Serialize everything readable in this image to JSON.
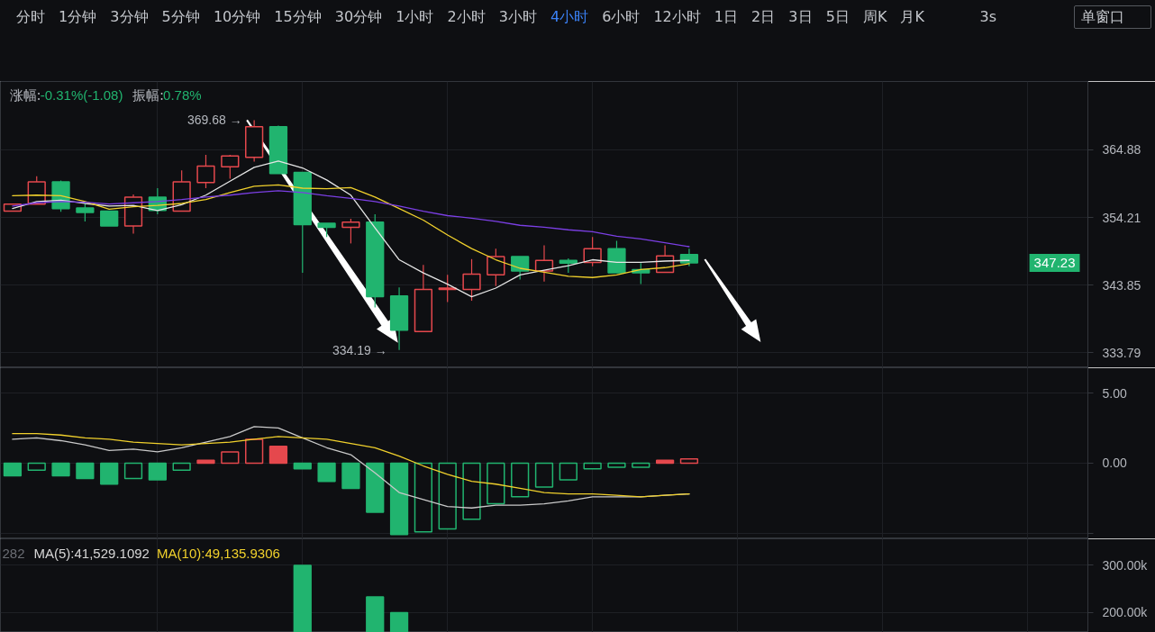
{
  "chart_data": [
    {
      "type": "other",
      "annotations": [
        "分时 1分钟 3分钟 5分钟 10分钟 15分钟 30分钟 1小时 2小时 3小时",
        "4小时",
        "6小时 12小时 1日 2日 3日 5日 周K 月K",
        "3s",
        "单窗口"
      ],
      "colors": [
        "#c4c7cc",
        "#3b82f6",
        "#c4c7cc",
        "#c4c7cc",
        "#c4c7cc"
      ]
    },
    {
      "type": "candlestick",
      "categories": [
        null,
        null,
        null,
        null,
        null,
        null,
        null,
        null,
        null,
        null,
        null,
        null,
        null,
        null,
        null,
        null,
        null,
        null,
        null,
        null,
        null,
        null,
        null,
        null,
        null,
        null,
        null,
        null,
        null,
        null,
        null,
        null,
        null,
        null,
        null,
        null,
        null,
        null,
        null,
        null,
        null,
        null,
        null,
        null,
        null
      ],
      "ohlc": [
        [
          355.2,
          356.3,
          355.2,
          356.3
        ],
        [
          356.3,
          360.7,
          356.3,
          359.8
        ],
        [
          359.8,
          360.0,
          355.1,
          355.6
        ],
        [
          355.7,
          356.4,
          353.6,
          355.0
        ],
        [
          355.2,
          355.2,
          352.9,
          352.9
        ],
        [
          352.9,
          357.8,
          351.7,
          357.4
        ],
        [
          357.4,
          358.8,
          354.7,
          355.3
        ],
        [
          355.2,
          361.6,
          355.2,
          359.8
        ],
        [
          359.7,
          364.1,
          358.8,
          362.3
        ],
        [
          362.2,
          364.1,
          360.3,
          363.9
        ],
        [
          363.7,
          369.68,
          363.0,
          368.6
        ],
        [
          368.6,
          368.8,
          361.1,
          361.1
        ],
        [
          361.3,
          361.3,
          345.7,
          353.1
        ],
        [
          353.3,
          353.3,
          351.2,
          352.7
        ],
        [
          352.7,
          354.0,
          350.2,
          353.5
        ],
        [
          353.5,
          354.7,
          340.5,
          342.1
        ],
        [
          342.2,
          343.5,
          334.19,
          337.1
        ],
        [
          336.9,
          346.9,
          336.8,
          343.2
        ],
        [
          343.2,
          345.4,
          341.3,
          343.4
        ],
        [
          343.2,
          347.8,
          341.5,
          345.5
        ],
        [
          345.4,
          349.4,
          343.7,
          348.2
        ],
        [
          348.2,
          348.2,
          344.7,
          346.0
        ],
        [
          346.0,
          349.9,
          344.4,
          347.6
        ],
        [
          347.6,
          347.9,
          345.7,
          347.2
        ],
        [
          347.3,
          351.2,
          346.7,
          349.4
        ],
        [
          349.4,
          350.6,
          345.7,
          345.7
        ],
        [
          346.2,
          347.2,
          344.0,
          345.7
        ],
        [
          345.8,
          349.9,
          345.8,
          348.3
        ],
        [
          348.5,
          349.4,
          346.7,
          347.23
        ],
        null,
        null,
        null,
        null,
        null,
        null,
        null,
        null,
        null,
        null,
        null,
        null,
        null,
        null,
        null,
        null
      ],
      "colors": [
        "#e5484d",
        "#e5484d",
        "#21b46f",
        "#21b46f",
        "#21b46f",
        "#e5484d",
        "#21b46f",
        "#e5484d",
        "#e5484d",
        "#e5484d",
        "#e5484d",
        "#21b46f",
        "#21b46f",
        "#21b46f",
        "#e5484d",
        "#21b46f",
        "#21b46f",
        "#e5484d",
        "#e5484d",
        "#e5484d",
        "#e5484d",
        "#21b46f",
        "#e5484d",
        "#21b46f",
        "#e5484d",
        "#21b46f",
        "#21b46f",
        "#e5484d",
        "#21b46f",
        null,
        null,
        null,
        null,
        null,
        null,
        null,
        null,
        null,
        null,
        null,
        null,
        null,
        null,
        null,
        null
      ],
      "series": [
        {
          "type": "line",
          "color": "#e6e6e6",
          "values": [
            355.6,
            356.7,
            356.9,
            356.4,
            356.0,
            356.1,
            355.3,
            356.2,
            357.7,
            359.9,
            362.1,
            363.1,
            362.0,
            360.1,
            357.7,
            352.6,
            347.7,
            345.7,
            344.0,
            342.1,
            343.4,
            345.4,
            346.1,
            346.8,
            347.7,
            347.3,
            347.3,
            347.5,
            347.6,
            null,
            null,
            null,
            null,
            null,
            null,
            null,
            null,
            null,
            null,
            null,
            null,
            null,
            null,
            null,
            null
          ]
        },
        {
          "type": "line",
          "color": "#f0d02c",
          "values": [
            357.6,
            357.7,
            357.6,
            356.7,
            355.5,
            355.9,
            356.1,
            356.4,
            357.0,
            358.1,
            359.1,
            359.3,
            358.8,
            358.7,
            358.9,
            357.4,
            355.6,
            353.8,
            351.5,
            349.4,
            347.7,
            346.4,
            345.8,
            345.2,
            345.0,
            345.4,
            346.2,
            346.5,
            347.1,
            null,
            null,
            null,
            null,
            null,
            null,
            null,
            null,
            null,
            null,
            null,
            null,
            null,
            null,
            null,
            null
          ]
        },
        {
          "type": "line",
          "color": "#7b3fe4",
          "values": [
            356.0,
            356.5,
            356.7,
            356.6,
            356.3,
            356.5,
            356.7,
            357.0,
            357.4,
            357.7,
            358.1,
            358.4,
            358.1,
            357.6,
            357.2,
            356.7,
            356.0,
            355.2,
            354.5,
            354.1,
            353.6,
            353.0,
            352.7,
            352.3,
            352.0,
            351.3,
            350.9,
            350.3,
            349.7,
            null,
            null,
            null,
            null,
            null,
            null,
            null,
            null,
            null,
            null,
            null,
            null,
            null,
            null,
            null,
            null
          ]
        }
      ],
      "ylim": [
        331.6,
        376.0
      ],
      "yticks": [
        364.88,
        354.21,
        343.85,
        333.79
      ],
      "log": true,
      "grid": true,
      "tick_labels": "y",
      "annotations": [
        "涨幅:-0.31%(-1.08)",
        "振幅:0.78%",
        "369.68 →",
        "334.19 →",
        "347.23"
      ]
    },
    {
      "type": "bar",
      "categories": [
        null,
        null,
        null,
        null,
        null,
        null,
        null,
        null,
        null,
        null,
        null,
        null,
        null,
        null,
        null,
        null,
        null,
        null,
        null,
        null,
        null,
        null,
        null,
        null,
        null,
        null,
        null,
        null,
        null,
        null,
        null,
        null,
        null,
        null,
        null,
        null,
        null,
        null,
        null,
        null,
        null,
        null,
        null,
        null,
        null
      ],
      "series": [
        {
          "type": "bar",
          "colors": [
            "#21b46f",
            "#21b46f",
            "#21b46f",
            "#21b46f",
            "#21b46f",
            "#21b46f",
            "#21b46f",
            "#21b46f",
            "#e5484d",
            "#e5484d",
            "#e5484d",
            "#e5484d",
            "#21b46f",
            "#21b46f",
            "#21b46f",
            "#21b46f",
            "#21b46f",
            "#21b46f",
            "#21b46f",
            "#21b46f",
            "#21b46f",
            "#21b46f",
            "#21b46f",
            "#21b46f",
            "#21b46f",
            "#21b46f",
            "#21b46f",
            "#e5484d",
            "#e5484d",
            null,
            null,
            null,
            null,
            null,
            null,
            null,
            null,
            null,
            null,
            null,
            null,
            null,
            null,
            null,
            null
          ],
          "values": [
            -0.9,
            -0.5,
            -0.9,
            -1.1,
            -1.5,
            -1.1,
            -1.2,
            -0.5,
            0.2,
            0.8,
            1.7,
            1.2,
            -0.4,
            -1.3,
            -1.8,
            -3.5,
            -5.1,
            -4.9,
            -4.7,
            -4.0,
            -2.9,
            -2.4,
            -1.7,
            -1.2,
            -0.4,
            -0.3,
            -0.3,
            0.2,
            0.3,
            null,
            null,
            null,
            null,
            null,
            null,
            null,
            null,
            null,
            null,
            null,
            null,
            null,
            null,
            null,
            null
          ]
        },
        {
          "type": "line",
          "color": "#c9c9c9",
          "values": [
            1.7,
            1.8,
            1.6,
            1.3,
            0.9,
            1.0,
            0.8,
            1.1,
            1.5,
            1.9,
            2.6,
            2.5,
            1.8,
            1.1,
            0.6,
            -0.7,
            -2.1,
            -2.6,
            -3.1,
            -3.2,
            -3.0,
            -3.0,
            -2.9,
            -2.7,
            -2.4,
            -2.4,
            -2.4,
            -2.3,
            -2.2,
            null,
            null,
            null,
            null,
            null,
            null,
            null,
            null,
            null,
            null,
            null,
            null,
            null,
            null,
            null,
            null
          ]
        },
        {
          "type": "line",
          "color": "#f0d02c",
          "values": [
            2.1,
            2.1,
            2.0,
            1.8,
            1.7,
            1.5,
            1.4,
            1.3,
            1.4,
            1.5,
            1.7,
            1.9,
            1.8,
            1.7,
            1.4,
            1.1,
            0.5,
            -0.2,
            -0.8,
            -1.3,
            -1.5,
            -1.8,
            -2.1,
            -2.2,
            -2.2,
            -2.3,
            -2.4,
            -2.3,
            -2.2,
            null,
            null,
            null,
            null,
            null,
            null,
            null,
            null,
            null,
            null,
            null,
            null,
            null,
            null,
            null,
            null
          ]
        }
      ],
      "ylim": [
        -5.4,
        6.8
      ],
      "yticks": [
        {
          "value": 5,
          "label": "5.00"
        },
        {
          "value": 0,
          "label": "0.00"
        },
        {
          "value": -5,
          "label": null
        }
      ],
      "grid": true,
      "tick_labels": "y"
    },
    {
      "type": "bar",
      "categories": [
        null,
        null,
        null,
        null,
        null,
        null,
        null,
        null,
        null,
        null,
        null,
        null,
        null,
        null,
        null,
        null,
        null,
        null,
        null,
        null,
        null,
        null,
        null,
        null,
        null,
        null,
        null,
        null,
        null,
        null,
        null,
        null,
        null,
        null,
        null,
        null,
        null,
        null,
        null,
        null,
        null,
        null,
        null,
        null,
        null
      ],
      "values": [
        null,
        null,
        null,
        null,
        null,
        null,
        null,
        null,
        null,
        null,
        null,
        null,
        300000,
        null,
        null,
        233000,
        200000,
        null,
        null,
        null,
        null,
        null,
        null,
        null,
        null,
        null,
        null,
        null,
        null,
        null,
        null,
        null,
        null,
        null,
        null,
        null,
        null,
        null,
        null,
        null,
        null,
        null,
        null,
        null,
        null
      ],
      "colors": [
        null,
        null,
        null,
        null,
        null,
        null,
        null,
        null,
        null,
        null,
        null,
        null,
        "#21b46f",
        null,
        null,
        "#21b46f",
        "#21b46f",
        null,
        null,
        null,
        null,
        null,
        null,
        null,
        null,
        null,
        null,
        null,
        null,
        null,
        null,
        null,
        null,
        null,
        null,
        null,
        null,
        null,
        null,
        null,
        null,
        null,
        null,
        null,
        null
      ],
      "ylim": [
        158000,
        356000
      ],
      "yticks": [
        {
          "value": 300000,
          "label": "300.00k"
        },
        {
          "value": 200000,
          "label": "200.00k"
        }
      ],
      "grid": true,
      "tick_labels": "y",
      "annotations": [
        "282",
        "MA(5):41,529.1092",
        "MA(10):49,135.9306"
      ]
    }
  ]
}
